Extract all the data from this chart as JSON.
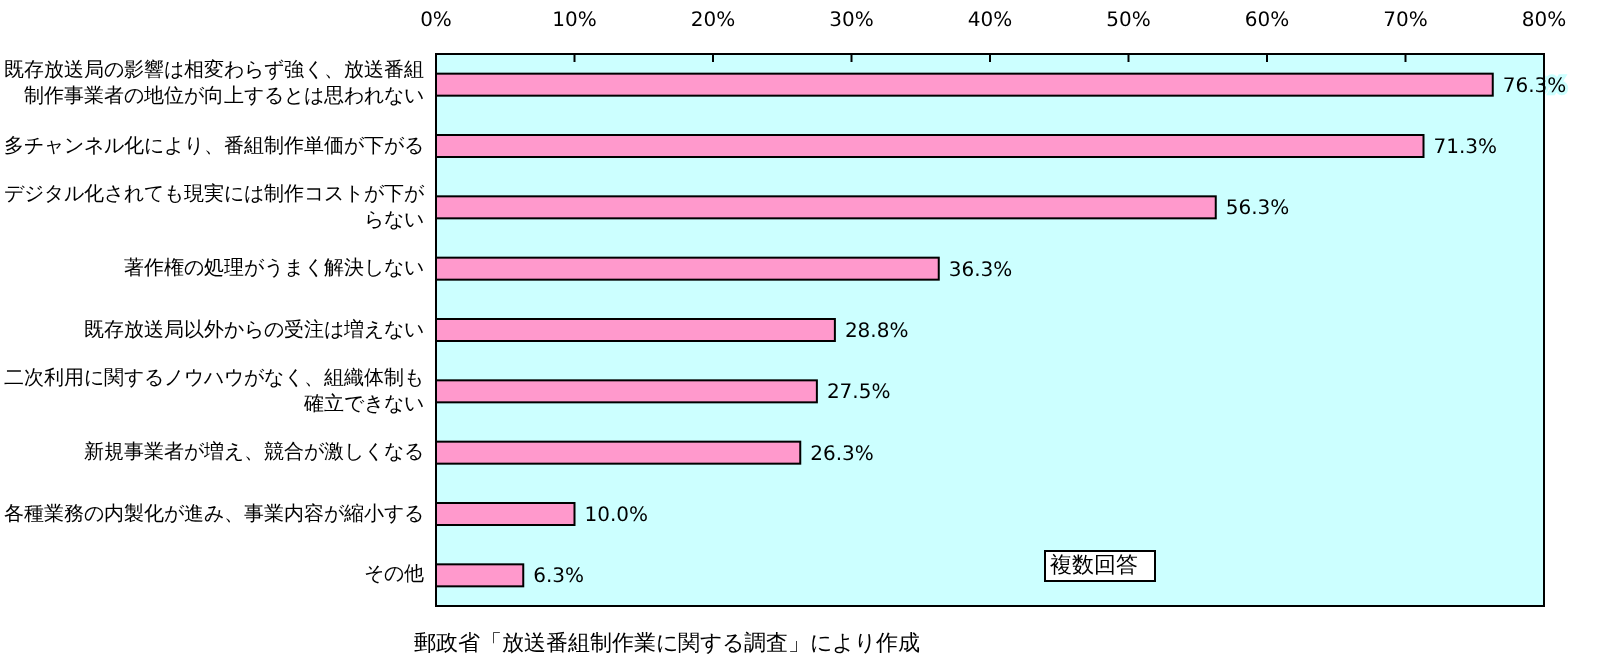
{
  "chart_data": {
    "type": "bar",
    "orientation": "horizontal",
    "categories": [
      "既存放送局の影響は相変わらず強く、放送番組制作事業者の地位が向上するとは思われない",
      "多チャンネル化により、番組制作単価が下がる",
      "デジタル化されても現実には制作コストが下がらない",
      "著作権の処理がうまく解決しない",
      "既存放送局以外からの受注は増えない",
      "二次利用に関するノウハウがなく、組織体制も確立できない",
      "新規事業者が増え、競合が激しくなる",
      "各種業務の内製化が進み、事業内容が縮小する",
      "その他"
    ],
    "values": [
      76.3,
      71.3,
      56.3,
      36.3,
      28.8,
      27.5,
      26.3,
      10.0,
      6.3
    ],
    "value_labels": [
      "76.3%",
      "71.3%",
      "56.3%",
      "36.3%",
      "28.8%",
      "27.5%",
      "26.3%",
      "10.0%",
      "6.3%"
    ],
    "color": "#ff99cc",
    "xlim": [
      0,
      80
    ],
    "xticks": [
      {
        "value": 0,
        "label": "0%"
      },
      {
        "value": 10,
        "label": "10%"
      },
      {
        "value": 20,
        "label": "20%"
      },
      {
        "value": 30,
        "label": "30%"
      },
      {
        "value": 40,
        "label": "40%"
      },
      {
        "value": 50,
        "label": "50%"
      },
      {
        "value": 60,
        "label": "60%"
      },
      {
        "value": 70,
        "label": "70%"
      },
      {
        "value": 80,
        "label": "80%"
      }
    ],
    "annotations": [
      "複数回答",
      "郵政省「放送番組制作業に関する調査」により作成"
    ]
  }
}
